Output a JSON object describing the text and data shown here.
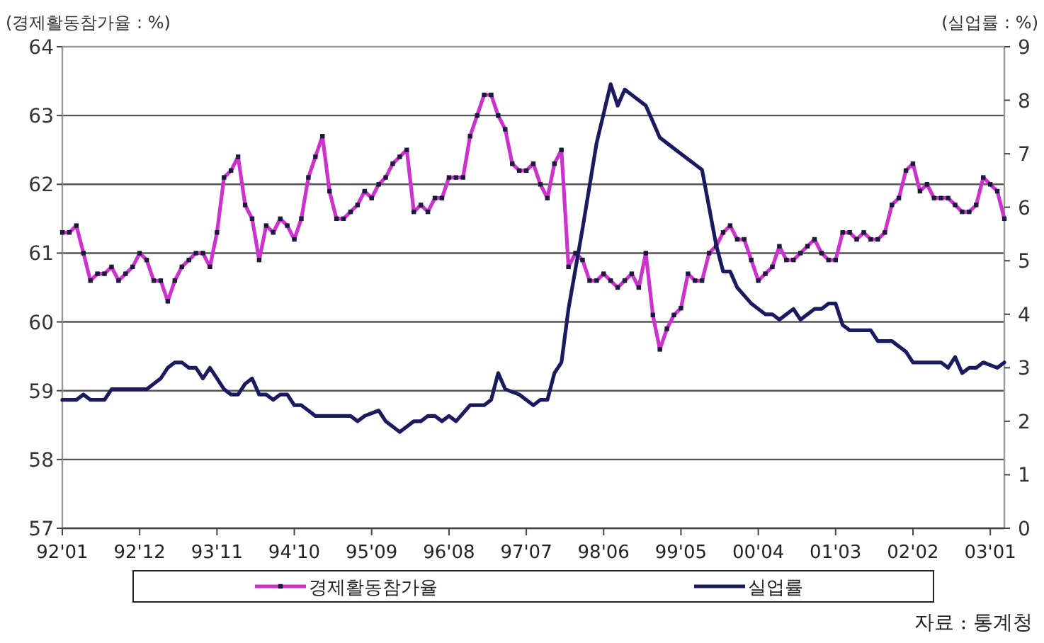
{
  "chart_data": {
    "type": "line",
    "ylabel": "(경제활동참가율 : %)",
    "y2label": "(실업률 : %)",
    "annotations": [
      "자료 : 통계청"
    ],
    "xlim": [
      "1992-01",
      "2003-03"
    ],
    "xticks": [
      {
        "value": "1992-01",
        "label": "92'01"
      },
      {
        "value": "1992-12",
        "label": "92'12"
      },
      {
        "value": "1993-11",
        "label": "93'11"
      },
      {
        "value": "1994-10",
        "label": "94'10"
      },
      {
        "value": "1995-09",
        "label": "95'09"
      },
      {
        "value": "1996-08",
        "label": "96'08"
      },
      {
        "value": "1997-07",
        "label": "97'07"
      },
      {
        "value": "1998-06",
        "label": "98'06"
      },
      {
        "value": "1999-05",
        "label": "99'05"
      },
      {
        "value": "2000-04",
        "label": "00'04"
      },
      {
        "value": "2001-03",
        "label": "01'03"
      },
      {
        "value": "2002-02",
        "label": "02'02"
      },
      {
        "value": "2003-01",
        "label": "03'01"
      }
    ],
    "ylim": [
      57,
      64
    ],
    "yticks": [
      57,
      58,
      59,
      60,
      61,
      62,
      63,
      64
    ],
    "y2lim": [
      0,
      9
    ],
    "y2ticks": [
      0,
      1,
      2,
      3,
      4,
      5,
      6,
      7,
      8,
      9
    ],
    "grid": "y",
    "legend": "bottom",
    "line_style": "solid",
    "x": [
      "1992-01",
      "1992-02",
      "1992-03",
      "1992-04",
      "1992-05",
      "1992-06",
      "1992-07",
      "1992-08",
      "1992-09",
      "1992-10",
      "1992-11",
      "1992-12",
      "1993-01",
      "1993-02",
      "1993-03",
      "1993-04",
      "1993-05",
      "1993-06",
      "1993-07",
      "1993-08",
      "1993-09",
      "1993-10",
      "1993-11",
      "1993-12",
      "1994-01",
      "1994-02",
      "1994-03",
      "1994-04",
      "1994-05",
      "1994-06",
      "1994-07",
      "1994-08",
      "1994-09",
      "1994-10",
      "1994-11",
      "1994-12",
      "1995-01",
      "1995-02",
      "1995-03",
      "1995-04",
      "1995-05",
      "1995-06",
      "1995-07",
      "1995-08",
      "1995-09",
      "1995-10",
      "1995-11",
      "1995-12",
      "1996-01",
      "1996-02",
      "1996-03",
      "1996-04",
      "1996-05",
      "1996-06",
      "1996-07",
      "1996-08",
      "1996-09",
      "1996-10",
      "1996-11",
      "1996-12",
      "1997-01",
      "1997-02",
      "1997-03",
      "1997-04",
      "1997-05",
      "1997-06",
      "1997-07",
      "1997-08",
      "1997-09",
      "1997-10",
      "1997-11",
      "1997-12",
      "1998-01",
      "1998-02",
      "1998-03",
      "1998-04",
      "1998-05",
      "1998-06",
      "1998-07",
      "1998-08",
      "1998-09",
      "1998-10",
      "1998-11",
      "1998-12",
      "1999-01",
      "1999-02",
      "1999-03",
      "1999-04",
      "1999-05",
      "1999-06",
      "1999-07",
      "1999-08",
      "1999-09",
      "1999-10",
      "1999-11",
      "1999-12",
      "2000-01",
      "2000-02",
      "2000-03",
      "2000-04",
      "2000-05",
      "2000-06",
      "2000-07",
      "2000-08",
      "2000-09",
      "2000-10",
      "2000-11",
      "2000-12",
      "2001-01",
      "2001-02",
      "2001-03",
      "2001-04",
      "2001-05",
      "2001-06",
      "2001-07",
      "2001-08",
      "2001-09",
      "2001-10",
      "2001-11",
      "2001-12",
      "2002-01",
      "2002-02",
      "2002-03",
      "2002-04",
      "2002-05",
      "2002-06",
      "2002-07",
      "2002-08",
      "2002-09",
      "2002-10",
      "2002-11",
      "2002-12",
      "2003-01",
      "2003-02",
      "2003-03"
    ],
    "series": [
      {
        "name": "경제활동참가율",
        "color": "#cc33cc",
        "marker": "square",
        "values": [
          61.3,
          61.3,
          61.4,
          61.0,
          60.6,
          60.7,
          60.7,
          60.8,
          60.6,
          60.7,
          60.8,
          61.0,
          60.9,
          60.6,
          60.6,
          60.3,
          60.6,
          60.8,
          60.9,
          61.0,
          61.0,
          60.8,
          61.3,
          62.1,
          62.2,
          62.4,
          61.7,
          61.5,
          60.9,
          61.4,
          61.3,
          61.5,
          61.4,
          61.2,
          61.5,
          62.1,
          62.4,
          62.7,
          61.9,
          61.5,
          61.5,
          61.6,
          61.7,
          61.9,
          61.8,
          62.0,
          62.1,
          62.3,
          62.4,
          62.5,
          61.6,
          61.7,
          61.6,
          61.8,
          61.8,
          62.1,
          62.1,
          62.1,
          62.7,
          63.0,
          63.3,
          63.3,
          63.0,
          62.8,
          62.3,
          62.2,
          62.2,
          62.3,
          62.0,
          61.8,
          62.3,
          62.5,
          60.8,
          61.0,
          60.9,
          60.6,
          60.6,
          60.7,
          60.6,
          60.5,
          60.6,
          60.7,
          60.5,
          61.0,
          60.1,
          59.6,
          59.9,
          60.1,
          60.2,
          60.7,
          60.6,
          60.6,
          61.0,
          61.1,
          61.3,
          61.4,
          61.2,
          61.2,
          60.9,
          60.6,
          60.7,
          60.8,
          61.1,
          60.9,
          60.9,
          61.0,
          61.1,
          61.2,
          61.0,
          60.9,
          60.9,
          61.3,
          61.3,
          61.2,
          61.3,
          61.2,
          61.2,
          61.3,
          61.7,
          61.8,
          62.2,
          62.3,
          61.9,
          62.0,
          61.8,
          61.8,
          61.8,
          61.7,
          61.6,
          61.6,
          61.7,
          62.1,
          62.0,
          61.9,
          61.5
        ]
      },
      {
        "name": "실업률",
        "color": "#1a1a5e",
        "axis": "y2",
        "marker": "none",
        "x": [
          "1992-01",
          "1992-03",
          "1992-04",
          "1992-05",
          "1992-07",
          "1992-08",
          "1992-09",
          "1993-01",
          "1993-02",
          "1993-03",
          "1993-04",
          "1993-05",
          "1993-06",
          "1993-07",
          "1993-08",
          "1993-09",
          "1993-10",
          "1993-11",
          "1993-12",
          "1994-01",
          "1994-02",
          "1994-03",
          "1994-04",
          "1994-05",
          "1994-06",
          "1994-07",
          "1994-08",
          "1994-09",
          "1994-10",
          "1994-11",
          "1994-12",
          "1995-01",
          "1995-02",
          "1995-06",
          "1995-07",
          "1995-08",
          "1995-10",
          "1995-11",
          "1996-01",
          "1996-03",
          "1996-04",
          "1996-05",
          "1996-06",
          "1996-07",
          "1996-08",
          "1996-09",
          "1996-11",
          "1997-01",
          "1997-02",
          "1997-03",
          "1997-04",
          "1997-06",
          "1997-08",
          "1997-09",
          "1997-10",
          "1997-11",
          "1997-12",
          "1998-01",
          "1998-03",
          "1998-05",
          "1998-07",
          "1998-08",
          "1998-09",
          "1998-10",
          "1998-12",
          "1999-01",
          "1999-02",
          "1999-04",
          "1999-07",
          "1999-08",
          "1999-09",
          "1999-10",
          "1999-11",
          "1999-12",
          "2000-01",
          "2000-03",
          "2000-04",
          "2000-05",
          "2000-06",
          "2000-07",
          "2000-09",
          "2000-10",
          "2000-12",
          "2001-01",
          "2001-02",
          "2001-03",
          "2001-04",
          "2001-05",
          "2001-08",
          "2001-09",
          "2001-11",
          "2001-12",
          "2002-01",
          "2002-02",
          "2002-06",
          "2002-07",
          "2002-08",
          "2002-09",
          "2002-10",
          "2002-11",
          "2002-12",
          "2003-02",
          "2003-03"
        ],
        "values": [
          2.4,
          2.4,
          2.5,
          2.4,
          2.4,
          2.6,
          2.6,
          2.6,
          2.7,
          2.8,
          3.0,
          3.1,
          3.1,
          3.0,
          3.0,
          2.8,
          3.0,
          2.8,
          2.6,
          2.5,
          2.5,
          2.7,
          2.8,
          2.5,
          2.5,
          2.4,
          2.5,
          2.5,
          2.3,
          2.3,
          2.2,
          2.1,
          2.1,
          2.1,
          2.0,
          2.1,
          2.2,
          2.0,
          1.8,
          2.0,
          2.0,
          2.1,
          2.1,
          2.0,
          2.1,
          2.0,
          2.3,
          2.3,
          2.4,
          2.9,
          2.6,
          2.5,
          2.3,
          2.4,
          2.4,
          2.9,
          3.1,
          4.1,
          5.6,
          7.2,
          8.3,
          7.9,
          8.2,
          8.1,
          7.9,
          7.6,
          7.3,
          7.1,
          6.8,
          6.7,
          6.0,
          5.3,
          4.8,
          4.8,
          4.5,
          4.2,
          4.1,
          4.0,
          4.0,
          3.9,
          4.1,
          3.9,
          4.1,
          4.1,
          4.2,
          4.2,
          3.8,
          3.7,
          3.7,
          3.5,
          3.5,
          3.4,
          3.3,
          3.1,
          3.1,
          3.0,
          3.2,
          2.9,
          3.0,
          3.0,
          3.1,
          3.0,
          3.1
        ]
      }
    ]
  }
}
